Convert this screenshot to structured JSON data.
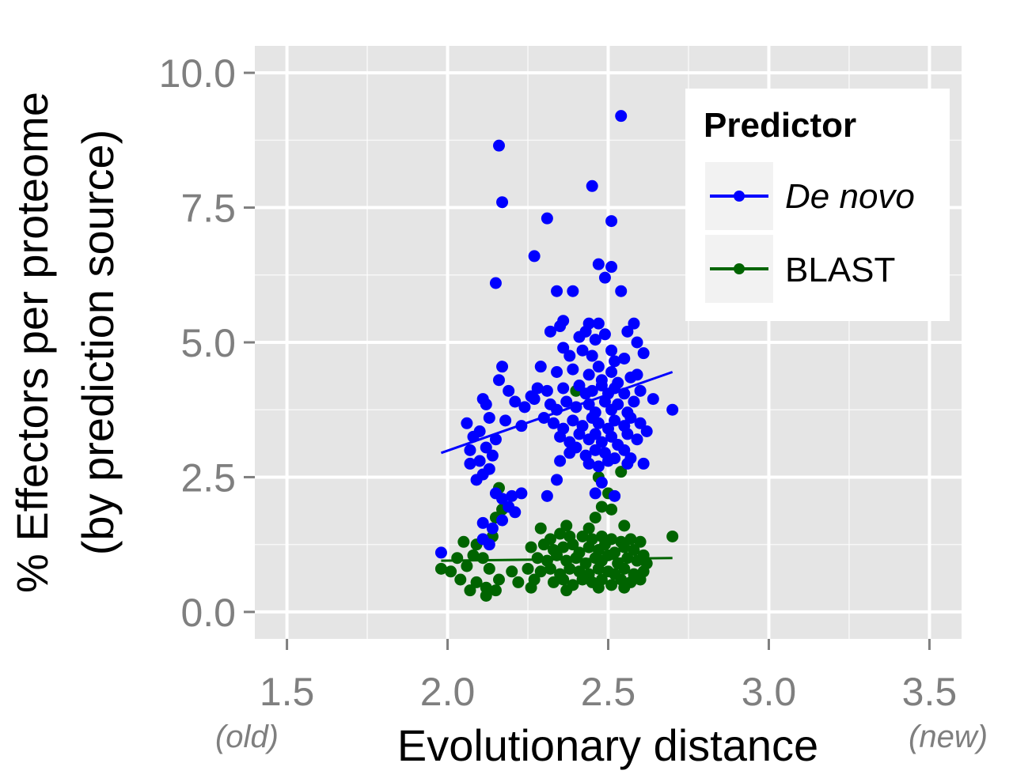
{
  "chart_data": {
    "type": "scatter",
    "xlabel": "Evolutionary distance",
    "ylabel_line1": "% Effectors per proteome",
    "ylabel_line2": "(by prediction source)",
    "x_note_left": "(old)",
    "x_note_right": "(new)",
    "xlim": [
      1.4,
      3.6
    ],
    "ylim": [
      -0.5,
      10.5
    ],
    "x_ticks": [
      "1.5",
      "2.0",
      "2.5",
      "3.0",
      "3.5"
    ],
    "y_ticks": [
      "0.0",
      "2.5",
      "5.0",
      "7.5",
      "10.0"
    ],
    "grid": true,
    "legend": {
      "title": "Predictor",
      "placement": "top-right",
      "entries": [
        {
          "label": "De novo",
          "color": "#0000ff",
          "italic": true
        },
        {
          "label": "BLAST",
          "color": "#006400",
          "italic": false
        }
      ]
    },
    "colors": {
      "panel": "#e5e5e5",
      "grid": "#ffffff",
      "denovo": "#0000ff",
      "blast": "#006400"
    },
    "series": [
      {
        "name": "De novo",
        "color": "#0000ff",
        "trend": [
          [
            1.98,
            2.95
          ],
          [
            2.7,
            4.45
          ]
        ],
        "points": [
          [
            2.54,
            9.2
          ],
          [
            2.16,
            8.65
          ],
          [
            2.17,
            7.6
          ],
          [
            2.45,
            7.9
          ],
          [
            2.31,
            7.3
          ],
          [
            2.51,
            7.25
          ],
          [
            2.27,
            6.6
          ],
          [
            2.47,
            6.45
          ],
          [
            2.51,
            6.4
          ],
          [
            2.49,
            6.2
          ],
          [
            2.15,
            6.1
          ],
          [
            2.34,
            5.95
          ],
          [
            2.39,
            5.95
          ],
          [
            2.54,
            5.95
          ],
          [
            2.32,
            5.2
          ],
          [
            2.35,
            5.3
          ],
          [
            2.36,
            5.4
          ],
          [
            2.44,
            5.35
          ],
          [
            2.47,
            5.35
          ],
          [
            2.58,
            5.35
          ],
          [
            2.41,
            5.1
          ],
          [
            2.43,
            5.2
          ],
          [
            2.46,
            5.05
          ],
          [
            2.49,
            5.15
          ],
          [
            2.56,
            5.2
          ],
          [
            2.59,
            5.0
          ],
          [
            2.36,
            4.9
          ],
          [
            2.38,
            4.75
          ],
          [
            2.42,
            4.85
          ],
          [
            2.45,
            4.75
          ],
          [
            2.51,
            4.85
          ],
          [
            2.52,
            4.65
          ],
          [
            2.55,
            4.7
          ],
          [
            2.61,
            4.8
          ],
          [
            2.17,
            4.55
          ],
          [
            2.29,
            4.55
          ],
          [
            2.34,
            4.45
          ],
          [
            2.39,
            4.5
          ],
          [
            2.44,
            4.4
          ],
          [
            2.47,
            4.55
          ],
          [
            2.48,
            4.3
          ],
          [
            2.51,
            4.45
          ],
          [
            2.53,
            4.25
          ],
          [
            2.57,
            4.35
          ],
          [
            2.59,
            4.4
          ],
          [
            2.16,
            4.3
          ],
          [
            2.19,
            4.1
          ],
          [
            2.26,
            4.0
          ],
          [
            2.28,
            4.15
          ],
          [
            2.31,
            4.1
          ],
          [
            2.36,
            4.15
          ],
          [
            2.41,
            4.2
          ],
          [
            2.43,
            4.05
          ],
          [
            2.45,
            4.1
          ],
          [
            2.48,
            4.2
          ],
          [
            2.5,
            4.05
          ],
          [
            2.52,
            4.15
          ],
          [
            2.55,
            4.05
          ],
          [
            2.6,
            4.1
          ],
          [
            2.11,
            3.95
          ],
          [
            2.12,
            3.85
          ],
          [
            2.21,
            3.9
          ],
          [
            2.24,
            3.8
          ],
          [
            2.27,
            3.95
          ],
          [
            2.32,
            3.85
          ],
          [
            2.34,
            3.75
          ],
          [
            2.37,
            3.9
          ],
          [
            2.4,
            3.8
          ],
          [
            2.44,
            3.85
          ],
          [
            2.46,
            3.7
          ],
          [
            2.49,
            3.9
          ],
          [
            2.51,
            3.75
          ],
          [
            2.53,
            3.85
          ],
          [
            2.56,
            3.7
          ],
          [
            2.58,
            3.9
          ],
          [
            2.64,
            3.95
          ],
          [
            2.7,
            3.75
          ],
          [
            2.06,
            3.5
          ],
          [
            2.13,
            3.6
          ],
          [
            2.18,
            3.55
          ],
          [
            2.23,
            3.45
          ],
          [
            2.3,
            3.6
          ],
          [
            2.33,
            3.5
          ],
          [
            2.36,
            3.4
          ],
          [
            2.39,
            3.55
          ],
          [
            2.42,
            3.45
          ],
          [
            2.45,
            3.6
          ],
          [
            2.47,
            3.5
          ],
          [
            2.5,
            3.4
          ],
          [
            2.52,
            3.55
          ],
          [
            2.55,
            3.45
          ],
          [
            2.57,
            3.6
          ],
          [
            2.6,
            3.5
          ],
          [
            2.62,
            3.35
          ],
          [
            2.08,
            3.25
          ],
          [
            2.1,
            3.35
          ],
          [
            2.15,
            3.2
          ],
          [
            2.35,
            3.25
          ],
          [
            2.38,
            3.15
          ],
          [
            2.41,
            3.3
          ],
          [
            2.44,
            3.2
          ],
          [
            2.46,
            3.3
          ],
          [
            2.48,
            3.15
          ],
          [
            2.51,
            3.25
          ],
          [
            2.53,
            3.1
          ],
          [
            2.56,
            3.3
          ],
          [
            2.59,
            3.2
          ],
          [
            2.07,
            3.0
          ],
          [
            2.12,
            3.05
          ],
          [
            2.14,
            2.9
          ],
          [
            2.38,
            2.95
          ],
          [
            2.4,
            3.05
          ],
          [
            2.43,
            2.9
          ],
          [
            2.46,
            3.0
          ],
          [
            2.49,
            2.95
          ],
          [
            2.52,
            2.85
          ],
          [
            2.55,
            3.0
          ],
          [
            2.57,
            2.85
          ],
          [
            2.07,
            2.75
          ],
          [
            2.1,
            2.8
          ],
          [
            2.13,
            2.65
          ],
          [
            2.35,
            2.8
          ],
          [
            2.44,
            2.75
          ],
          [
            2.47,
            2.7
          ],
          [
            2.5,
            2.8
          ],
          [
            2.56,
            2.75
          ],
          [
            2.61,
            2.75
          ],
          [
            2.09,
            2.45
          ],
          [
            2.11,
            2.55
          ],
          [
            2.34,
            2.45
          ],
          [
            2.48,
            2.4
          ],
          [
            2.15,
            2.2
          ],
          [
            2.17,
            2.1
          ],
          [
            2.2,
            2.15
          ],
          [
            2.23,
            2.2
          ],
          [
            2.31,
            2.15
          ],
          [
            2.46,
            2.2
          ],
          [
            2.52,
            2.15
          ],
          [
            2.19,
            1.95
          ],
          [
            2.21,
            1.85
          ],
          [
            2.11,
            1.65
          ],
          [
            2.14,
            1.55
          ],
          [
            2.17,
            1.7
          ],
          [
            2.11,
            1.35
          ],
          [
            2.13,
            1.25
          ],
          [
            1.98,
            1.1
          ]
        ]
      },
      {
        "name": "BLAST",
        "color": "#006400",
        "trend": [
          [
            1.98,
            0.95
          ],
          [
            2.7,
            1.0
          ]
        ],
        "points": [
          [
            2.4,
            4.1
          ],
          [
            2.16,
            2.3
          ],
          [
            2.17,
            1.9
          ],
          [
            2.15,
            1.75
          ],
          [
            2.47,
            2.5
          ],
          [
            2.54,
            2.6
          ],
          [
            2.5,
            2.2
          ],
          [
            2.48,
            1.95
          ],
          [
            2.51,
            1.9
          ],
          [
            2.46,
            1.75
          ],
          [
            2.55,
            1.6
          ],
          [
            2.29,
            1.55
          ],
          [
            2.37,
            1.6
          ],
          [
            2.44,
            1.55
          ],
          [
            2.7,
            1.4
          ],
          [
            2.14,
            1.4
          ],
          [
            2.32,
            1.35
          ],
          [
            2.35,
            1.45
          ],
          [
            2.38,
            1.4
          ],
          [
            2.42,
            1.4
          ],
          [
            2.45,
            1.35
          ],
          [
            2.48,
            1.4
          ],
          [
            2.51,
            1.35
          ],
          [
            2.54,
            1.3
          ],
          [
            2.57,
            1.35
          ],
          [
            2.6,
            1.3
          ],
          [
            2.05,
            1.3
          ],
          [
            2.09,
            1.25
          ],
          [
            2.26,
            1.2
          ],
          [
            2.3,
            1.25
          ],
          [
            2.33,
            1.15
          ],
          [
            2.36,
            1.2
          ],
          [
            2.39,
            1.25
          ],
          [
            2.41,
            1.1
          ],
          [
            2.44,
            1.2
          ],
          [
            2.47,
            1.15
          ],
          [
            2.49,
            1.25
          ],
          [
            2.52,
            1.1
          ],
          [
            2.55,
            1.2
          ],
          [
            2.58,
            1.15
          ],
          [
            2.61,
            1.05
          ],
          [
            2.03,
            1.0
          ],
          [
            2.08,
            1.05
          ],
          [
            2.11,
            1.0
          ],
          [
            2.28,
            1.0
          ],
          [
            2.31,
            0.95
          ],
          [
            2.34,
            1.05
          ],
          [
            2.37,
            0.95
          ],
          [
            2.4,
            1.0
          ],
          [
            2.43,
            0.9
          ],
          [
            2.46,
            1.0
          ],
          [
            2.48,
            0.95
          ],
          [
            2.5,
            1.05
          ],
          [
            2.53,
            0.9
          ],
          [
            2.56,
            1.0
          ],
          [
            2.59,
            0.95
          ],
          [
            2.62,
            0.9
          ],
          [
            1.98,
            0.8
          ],
          [
            2.01,
            0.75
          ],
          [
            2.06,
            0.85
          ],
          [
            2.13,
            0.8
          ],
          [
            2.2,
            0.75
          ],
          [
            2.25,
            0.8
          ],
          [
            2.29,
            0.75
          ],
          [
            2.32,
            0.8
          ],
          [
            2.35,
            0.7
          ],
          [
            2.38,
            0.8
          ],
          [
            2.41,
            0.75
          ],
          [
            2.44,
            0.7
          ],
          [
            2.47,
            0.8
          ],
          [
            2.5,
            0.75
          ],
          [
            2.52,
            0.7
          ],
          [
            2.55,
            0.8
          ],
          [
            2.58,
            0.7
          ],
          [
            2.61,
            0.75
          ],
          [
            2.04,
            0.6
          ],
          [
            2.09,
            0.55
          ],
          [
            2.16,
            0.6
          ],
          [
            2.22,
            0.55
          ],
          [
            2.27,
            0.6
          ],
          [
            2.33,
            0.55
          ],
          [
            2.36,
            0.6
          ],
          [
            2.39,
            0.5
          ],
          [
            2.42,
            0.6
          ],
          [
            2.45,
            0.55
          ],
          [
            2.48,
            0.6
          ],
          [
            2.51,
            0.5
          ],
          [
            2.54,
            0.6
          ],
          [
            2.57,
            0.55
          ],
          [
            2.6,
            0.6
          ],
          [
            2.07,
            0.4
          ],
          [
            2.12,
            0.45
          ],
          [
            2.15,
            0.4
          ],
          [
            2.26,
            0.45
          ],
          [
            2.37,
            0.4
          ],
          [
            2.47,
            0.45
          ],
          [
            2.55,
            0.45
          ],
          [
            2.12,
            0.3
          ]
        ]
      }
    ]
  }
}
